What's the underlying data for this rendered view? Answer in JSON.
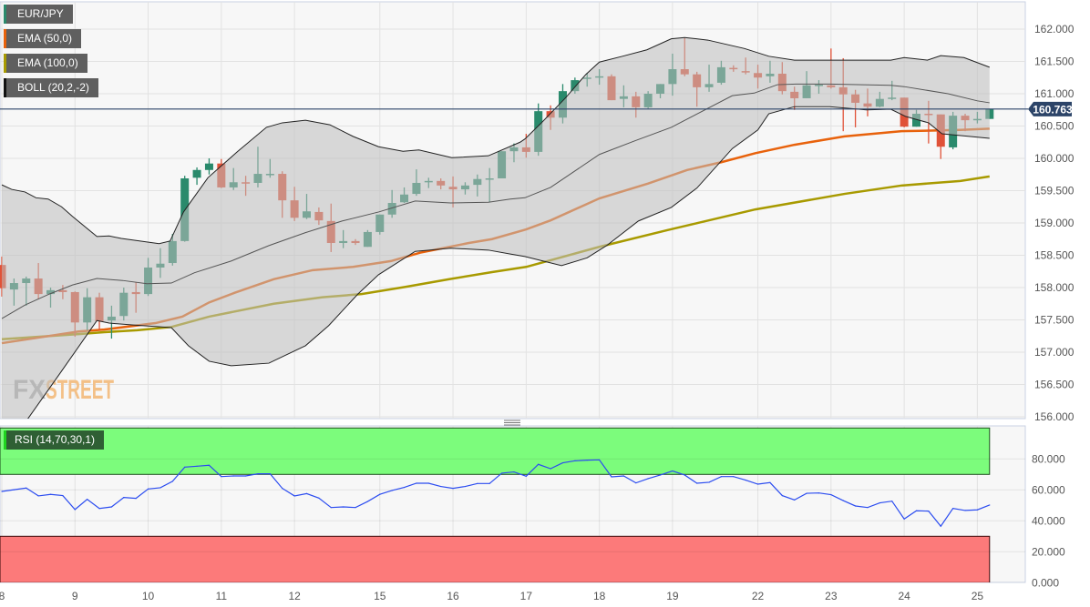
{
  "legend": {
    "items": [
      {
        "label": "EUR/JPY",
        "color": "#2a8a6c"
      },
      {
        "label": "EMA (50,0)",
        "color": "#e8620c"
      },
      {
        "label": "EMA (100,0)",
        "color": "#a89a00"
      },
      {
        "label": "BOLL (20,2,-2)",
        "color": "#111111"
      }
    ],
    "rsi_label": "RSI (14,70,30,1)",
    "rsi_color": "#1fd41f"
  },
  "watermark": {
    "part1": "FX",
    "part2": "STREET"
  },
  "colors": {
    "up": "#2a8a6c",
    "down": "#e05238",
    "ema50": "#e8620c",
    "ema100": "#a89a00",
    "boll": "#222222",
    "rsi_line": "#2b4cf0",
    "overbought_zone": "#7cfc7c",
    "oversold_zone": "#fc7a7a",
    "price_tag": "#2c4468",
    "background": "#f7f7f7"
  },
  "chart_data": {
    "type": "candlestick",
    "symbol": "EUR/JPY",
    "current_price": 160.763,
    "current_price_label": "160.763",
    "ylim": [
      156.0,
      162.0
    ],
    "grid": true,
    "x_ticks": [
      {
        "label": "8",
        "index": 0
      },
      {
        "label": "9",
        "index": 6
      },
      {
        "label": "10",
        "index": 12
      },
      {
        "label": "11",
        "index": 18
      },
      {
        "label": "12",
        "index": 24
      },
      {
        "label": "15",
        "index": 31
      },
      {
        "label": "16",
        "index": 37
      },
      {
        "label": "17",
        "index": 43
      },
      {
        "label": "18",
        "index": 49
      },
      {
        "label": "19",
        "index": 55
      },
      {
        "label": "22",
        "index": 62
      },
      {
        "label": "23",
        "index": 68
      },
      {
        "label": "24",
        "index": 74
      },
      {
        "label": "25",
        "index": 80
      }
    ],
    "price_ticks": [
      "162.000",
      "161.500",
      "161.000",
      "160.500",
      "160.000",
      "159.500",
      "159.000",
      "158.500",
      "158.000",
      "157.500",
      "157.000",
      "156.500",
      "156.000"
    ],
    "candles_ohlc": [
      [
        158.35,
        158.48,
        157.86,
        157.99
      ],
      [
        157.97,
        158.14,
        157.72,
        158.07
      ],
      [
        158.07,
        158.17,
        157.72,
        158.14
      ],
      [
        158.14,
        158.38,
        157.82,
        157.9
      ],
      [
        157.9,
        158.0,
        157.69,
        157.96
      ],
      [
        157.96,
        158.04,
        157.82,
        157.93
      ],
      [
        157.93,
        157.94,
        157.24,
        157.46
      ],
      [
        157.46,
        157.99,
        157.34,
        157.85
      ],
      [
        157.85,
        157.92,
        157.35,
        157.48
      ],
      [
        157.49,
        157.72,
        157.21,
        157.55
      ],
      [
        157.56,
        158.0,
        157.49,
        157.92
      ],
      [
        157.93,
        158.08,
        157.61,
        157.9
      ],
      [
        157.9,
        158.46,
        157.87,
        158.31
      ],
      [
        158.31,
        158.61,
        158.15,
        158.37
      ],
      [
        158.38,
        158.83,
        158.34,
        158.72
      ],
      [
        158.72,
        159.73,
        158.71,
        159.69
      ],
      [
        159.7,
        159.86,
        159.59,
        159.82
      ],
      [
        159.82,
        160.0,
        159.75,
        159.92
      ],
      [
        159.92,
        159.99,
        159.54,
        159.55
      ],
      [
        159.55,
        159.85,
        159.51,
        159.63
      ],
      [
        159.63,
        159.73,
        159.42,
        159.62
      ],
      [
        159.62,
        160.18,
        159.55,
        159.76
      ],
      [
        159.75,
        159.99,
        159.7,
        159.76
      ],
      [
        159.76,
        159.8,
        159.08,
        159.35
      ],
      [
        159.35,
        159.56,
        159.03,
        159.08
      ],
      [
        159.08,
        159.45,
        159.06,
        159.18
      ],
      [
        159.17,
        159.24,
        158.97,
        159.04
      ],
      [
        159.03,
        159.3,
        158.55,
        158.69
      ],
      [
        158.69,
        158.89,
        158.61,
        158.72
      ],
      [
        158.72,
        158.75,
        158.66,
        158.69
      ],
      [
        158.63,
        158.89,
        158.63,
        158.86
      ],
      [
        158.86,
        159.13,
        158.82,
        159.13
      ],
      [
        159.13,
        159.51,
        159.08,
        159.31
      ],
      [
        159.32,
        159.55,
        159.31,
        159.44
      ],
      [
        159.45,
        159.83,
        159.42,
        159.62
      ],
      [
        159.63,
        159.7,
        159.54,
        159.65
      ],
      [
        159.65,
        159.69,
        159.52,
        159.58
      ],
      [
        159.56,
        159.72,
        159.24,
        159.52
      ],
      [
        159.52,
        159.63,
        159.44,
        159.58
      ],
      [
        159.59,
        159.75,
        159.41,
        159.68
      ],
      [
        159.68,
        159.85,
        159.32,
        159.69
      ],
      [
        159.69,
        160.11,
        159.69,
        160.11
      ],
      [
        160.11,
        160.23,
        159.94,
        160.17
      ],
      [
        160.17,
        160.38,
        160.01,
        160.1
      ],
      [
        160.1,
        160.85,
        160.04,
        160.73
      ],
      [
        160.73,
        160.82,
        160.44,
        160.63
      ],
      [
        160.63,
        161.15,
        160.54,
        161.04
      ],
      [
        161.04,
        161.25,
        161.0,
        161.21
      ],
      [
        161.23,
        161.32,
        161.11,
        161.25
      ],
      [
        161.25,
        161.38,
        161.14,
        161.27
      ],
      [
        161.27,
        161.3,
        160.9,
        160.9
      ],
      [
        160.92,
        161.13,
        160.79,
        160.96
      ],
      [
        160.96,
        161.03,
        160.63,
        160.79
      ],
      [
        160.79,
        161.04,
        160.77,
        161.0
      ],
      [
        161.0,
        161.15,
        160.93,
        161.15
      ],
      [
        161.15,
        161.62,
        160.97,
        161.38
      ],
      [
        161.38,
        161.86,
        161.27,
        161.3
      ],
      [
        161.3,
        161.34,
        160.8,
        161.1
      ],
      [
        161.1,
        161.45,
        161.03,
        161.15
      ],
      [
        161.17,
        161.51,
        161.14,
        161.41
      ],
      [
        161.4,
        161.44,
        161.34,
        161.39
      ],
      [
        161.35,
        161.56,
        161.3,
        161.34
      ],
      [
        161.32,
        161.45,
        161.08,
        161.25
      ],
      [
        161.27,
        161.51,
        161.17,
        161.31
      ],
      [
        161.31,
        161.49,
        160.99,
        161.04
      ],
      [
        161.03,
        161.11,
        160.75,
        160.93
      ],
      [
        160.93,
        161.35,
        160.93,
        161.13
      ],
      [
        161.13,
        161.21,
        161.0,
        161.14
      ],
      [
        161.13,
        161.7,
        161.08,
        161.1
      ],
      [
        161.1,
        161.55,
        160.42,
        160.99
      ],
      [
        160.99,
        161.06,
        160.48,
        160.86
      ],
      [
        160.85,
        161.08,
        160.65,
        160.8
      ],
      [
        160.8,
        161.03,
        160.79,
        160.92
      ],
      [
        160.92,
        161.2,
        160.9,
        160.94
      ],
      [
        160.94,
        160.94,
        160.48,
        160.49
      ],
      [
        160.49,
        160.75,
        160.49,
        160.69
      ],
      [
        160.69,
        160.89,
        160.23,
        160.68
      ],
      [
        160.68,
        160.68,
        159.99,
        160.18
      ],
      [
        160.17,
        160.72,
        160.14,
        160.66
      ],
      [
        160.66,
        160.69,
        160.42,
        160.59
      ],
      [
        160.59,
        160.72,
        160.54,
        160.61
      ],
      [
        160.61,
        160.76,
        160.61,
        160.763
      ]
    ],
    "ema50": [
      [
        0,
        157.14
      ],
      [
        6.3,
        157.32
      ],
      [
        8.4,
        157.35
      ],
      [
        12.6,
        157.45
      ],
      [
        14.8,
        157.55
      ],
      [
        17.0,
        157.77
      ],
      [
        19.1,
        157.92
      ],
      [
        22.3,
        158.13
      ],
      [
        25.5,
        158.27
      ],
      [
        28.8,
        158.32
      ],
      [
        31.9,
        158.41
      ],
      [
        34.3,
        158.54
      ],
      [
        38.3,
        158.69
      ],
      [
        40.2,
        158.75
      ],
      [
        43.0,
        158.9
      ],
      [
        45.0,
        159.04
      ],
      [
        49.0,
        159.38
      ],
      [
        53.0,
        159.61
      ],
      [
        56.2,
        159.82
      ],
      [
        59.0,
        159.94
      ],
      [
        61.8,
        160.08
      ],
      [
        65.0,
        160.21
      ],
      [
        69.1,
        160.34
      ],
      [
        73.8,
        160.42
      ],
      [
        78.6,
        160.44
      ],
      [
        81,
        160.46
      ]
    ],
    "ema100": [
      [
        0,
        157.2
      ],
      [
        6.3,
        157.28
      ],
      [
        8.4,
        157.31
      ],
      [
        11.1,
        157.34
      ],
      [
        13.9,
        157.39
      ],
      [
        17.0,
        157.55
      ],
      [
        22.3,
        157.75
      ],
      [
        26.3,
        157.85
      ],
      [
        29.5,
        157.9
      ],
      [
        33.1,
        158.01
      ],
      [
        36.7,
        158.13
      ],
      [
        40.2,
        158.24
      ],
      [
        43.0,
        158.32
      ],
      [
        49.0,
        158.63
      ],
      [
        54.6,
        158.89
      ],
      [
        61.8,
        159.21
      ],
      [
        69.1,
        159.45
      ],
      [
        73.8,
        159.58
      ],
      [
        78.6,
        159.65
      ],
      [
        81,
        159.72
      ]
    ],
    "boll_upper": [
      [
        0,
        159.59
      ],
      [
        0.8,
        159.52
      ],
      [
        1.9,
        159.48
      ],
      [
        2.8,
        159.39
      ],
      [
        3.8,
        159.37
      ],
      [
        4.9,
        159.25
      ],
      [
        5.8,
        159.1
      ],
      [
        7.8,
        158.79
      ],
      [
        8.8,
        158.8
      ],
      [
        9.8,
        158.76
      ],
      [
        12.9,
        158.68
      ],
      [
        13.8,
        158.72
      ],
      [
        14.9,
        159.17
      ],
      [
        16.9,
        159.7
      ],
      [
        17.8,
        159.85
      ],
      [
        19.3,
        160.1
      ],
      [
        21.7,
        160.48
      ],
      [
        23.0,
        160.55
      ],
      [
        24.9,
        160.59
      ],
      [
        26.9,
        160.52
      ],
      [
        28.8,
        160.34
      ],
      [
        30.9,
        160.18
      ],
      [
        32.9,
        160.11
      ],
      [
        34.2,
        160.13
      ],
      [
        36.9,
        160.01
      ],
      [
        39.9,
        160.04
      ],
      [
        42.5,
        160.25
      ],
      [
        42.9,
        160.3
      ],
      [
        44.2,
        160.54
      ],
      [
        46.2,
        160.93
      ],
      [
        47.9,
        161.3
      ],
      [
        49.0,
        161.49
      ],
      [
        50.9,
        161.58
      ],
      [
        52.9,
        161.68
      ],
      [
        54.9,
        161.85
      ],
      [
        56.0,
        161.87
      ],
      [
        57.9,
        161.83
      ],
      [
        60.9,
        161.7
      ],
      [
        62.9,
        161.58
      ],
      [
        65.0,
        161.52
      ],
      [
        67.9,
        161.52
      ],
      [
        72.9,
        161.52
      ],
      [
        74.0,
        161.56
      ],
      [
        75.9,
        161.52
      ],
      [
        77.0,
        161.59
      ],
      [
        78.9,
        161.56
      ],
      [
        81,
        161.41
      ]
    ],
    "boll_middle": [
      [
        0,
        157.52
      ],
      [
        1.9,
        157.73
      ],
      [
        3.9,
        157.9
      ],
      [
        5.8,
        158.04
      ],
      [
        7.8,
        158.14
      ],
      [
        9.9,
        158.11
      ],
      [
        11.9,
        158.06
      ],
      [
        13.9,
        158.07
      ],
      [
        15.8,
        158.23
      ],
      [
        18.8,
        158.41
      ],
      [
        21.9,
        158.65
      ],
      [
        24.9,
        158.85
      ],
      [
        27.9,
        159.03
      ],
      [
        30.9,
        159.17
      ],
      [
        33.9,
        159.34
      ],
      [
        36.8,
        159.31
      ],
      [
        39.9,
        159.32
      ],
      [
        41.7,
        159.37
      ],
      [
        42.9,
        159.39
      ],
      [
        45.0,
        159.55
      ],
      [
        49.0,
        160.06
      ],
      [
        51.9,
        160.27
      ],
      [
        54.9,
        160.48
      ],
      [
        59.9,
        160.97
      ],
      [
        61.7,
        161.01
      ],
      [
        63.6,
        161.14
      ],
      [
        65.1,
        161.15
      ],
      [
        67.9,
        161.15
      ],
      [
        72.9,
        161.13
      ],
      [
        74.0,
        161.11
      ],
      [
        77.6,
        161.0
      ],
      [
        80.0,
        160.89
      ],
      [
        81,
        160.86
      ]
    ],
    "boll_lower": [
      [
        0,
        155.4
      ],
      [
        4.8,
        156.68
      ],
      [
        7.8,
        157.49
      ],
      [
        8.8,
        157.45
      ],
      [
        10.8,
        157.42
      ],
      [
        13.9,
        157.38
      ],
      [
        15.3,
        157.1
      ],
      [
        17.0,
        156.86
      ],
      [
        18.8,
        156.79
      ],
      [
        21.9,
        156.83
      ],
      [
        24.9,
        157.1
      ],
      [
        26.8,
        157.41
      ],
      [
        29.2,
        157.9
      ],
      [
        30.9,
        158.2
      ],
      [
        33.9,
        158.56
      ],
      [
        36.8,
        158.61
      ],
      [
        39.9,
        158.58
      ],
      [
        41.7,
        158.52
      ],
      [
        42.9,
        158.48
      ],
      [
        45.9,
        158.34
      ],
      [
        48.0,
        158.46
      ],
      [
        49.6,
        158.65
      ],
      [
        52.2,
        159.03
      ],
      [
        54.9,
        159.24
      ],
      [
        57.0,
        159.54
      ],
      [
        59.9,
        160.15
      ],
      [
        62.0,
        160.44
      ],
      [
        62.9,
        160.69
      ],
      [
        65.0,
        160.8
      ],
      [
        67.9,
        160.8
      ],
      [
        70.9,
        160.75
      ],
      [
        72.9,
        160.76
      ],
      [
        74.1,
        160.65
      ],
      [
        76.0,
        160.55
      ],
      [
        77.1,
        160.38
      ],
      [
        81,
        160.31
      ]
    ],
    "rsi": {
      "ylim": [
        0,
        100
      ],
      "overbought": 70,
      "oversold": 30,
      "ticks": [
        "80.000",
        "60.000",
        "40.000",
        "20.000",
        "0.000"
      ],
      "values": [
        59.0,
        60.1,
        61.2,
        56.1,
        57.1,
        56.3,
        47.3,
        53.9,
        48.0,
        49.0,
        55.1,
        54.5,
        60.6,
        61.4,
        65.5,
        74.7,
        75.3,
        75.9,
        68.6,
        69.0,
        69.0,
        70.4,
        70.4,
        61.0,
        56.1,
        57.6,
        54.7,
        48.6,
        49.0,
        48.6,
        52.5,
        57.1,
        59.6,
        61.6,
        64.3,
        64.3,
        62.2,
        61.0,
        62.2,
        64.1,
        64.1,
        70.8,
        71.6,
        68.8,
        76.5,
        73.7,
        77.5,
        78.8,
        79.2,
        79.4,
        68.4,
        69.0,
        64.5,
        67.3,
        69.6,
        72.2,
        69.6,
        64.3,
        64.9,
        68.6,
        68.6,
        66.3,
        63.7,
        64.7,
        56.3,
        53.5,
        57.8,
        58.0,
        56.9,
        53.1,
        49.6,
        48.6,
        51.6,
        52.7,
        41.2,
        46.5,
        46.3,
        36.5,
        48.0,
        46.7,
        47.1,
        50.2
      ]
    }
  }
}
